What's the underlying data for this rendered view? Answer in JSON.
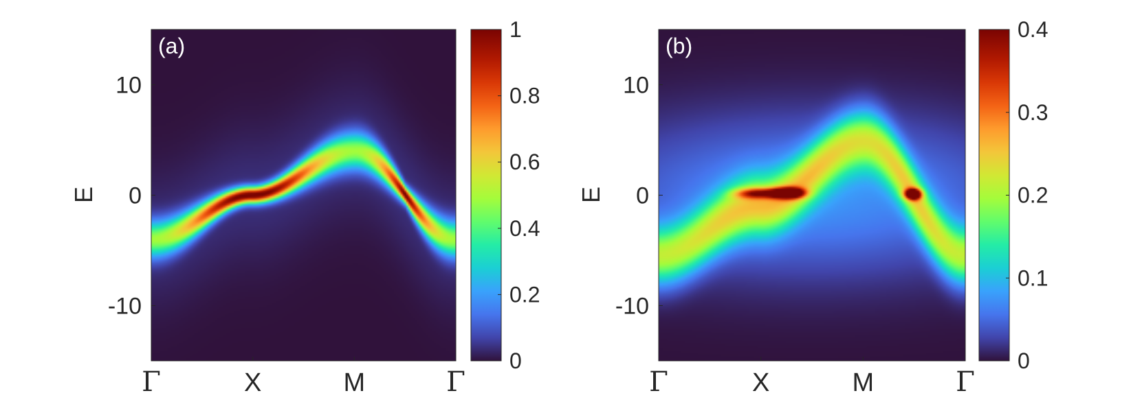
{
  "chart_data": [
    {
      "type": "heatmap",
      "panel_label": "(a)",
      "ylabel": "E",
      "xlabel": "",
      "ylim": [
        -15,
        15
      ],
      "x_ticks": [
        "Γ",
        "X",
        "M",
        "Γ"
      ],
      "y_ticks": [
        {
          "value": 10,
          "label": "10"
        },
        {
          "value": 0,
          "label": "0"
        },
        {
          "value": -10,
          "label": "-10"
        }
      ],
      "colorbar": {
        "range": [
          0,
          1
        ],
        "colormap": "turbo",
        "ticks": [
          {
            "value": 0,
            "label": "0"
          },
          {
            "value": 0.2,
            "label": "0.2"
          },
          {
            "value": 0.4,
            "label": "0.4"
          },
          {
            "value": 0.6,
            "label": "0.6"
          },
          {
            "value": 0.8,
            "label": "0.8"
          },
          {
            "value": 1,
            "label": "1"
          }
        ]
      },
      "band": {
        "k": [
          0,
          0.33,
          0.67,
          1
        ],
        "E": [
          -4,
          0,
          4,
          -4
        ],
        "peak_intensity_range": [
          0.45,
          1
        ]
      }
    },
    {
      "type": "heatmap",
      "panel_label": "(b)",
      "ylabel": "E",
      "xlabel": "",
      "ylim": [
        -15,
        15
      ],
      "x_ticks": [
        "Γ",
        "X",
        "M",
        "Γ"
      ],
      "y_ticks": [
        {
          "value": 10,
          "label": "10"
        },
        {
          "value": 0,
          "label": "0"
        },
        {
          "value": -10,
          "label": "-10"
        }
      ],
      "colorbar": {
        "range": [
          0,
          0.4
        ],
        "colormap": "turbo",
        "ticks": [
          {
            "value": 0,
            "label": "0"
          },
          {
            "value": 0.1,
            "label": "0.1"
          },
          {
            "value": 0.2,
            "label": "0.2"
          },
          {
            "value": 0.3,
            "label": "0.3"
          },
          {
            "value": 0.4,
            "label": "0.4"
          }
        ]
      },
      "flat_band": {
        "E": 0,
        "peak_intensity": 0.4
      },
      "dispersive_band": {
        "k": [
          0,
          0.33,
          0.67,
          1
        ],
        "E": [
          -5.5,
          -1,
          5,
          -5.5
        ],
        "peak_intensity": 0.2
      }
    }
  ]
}
